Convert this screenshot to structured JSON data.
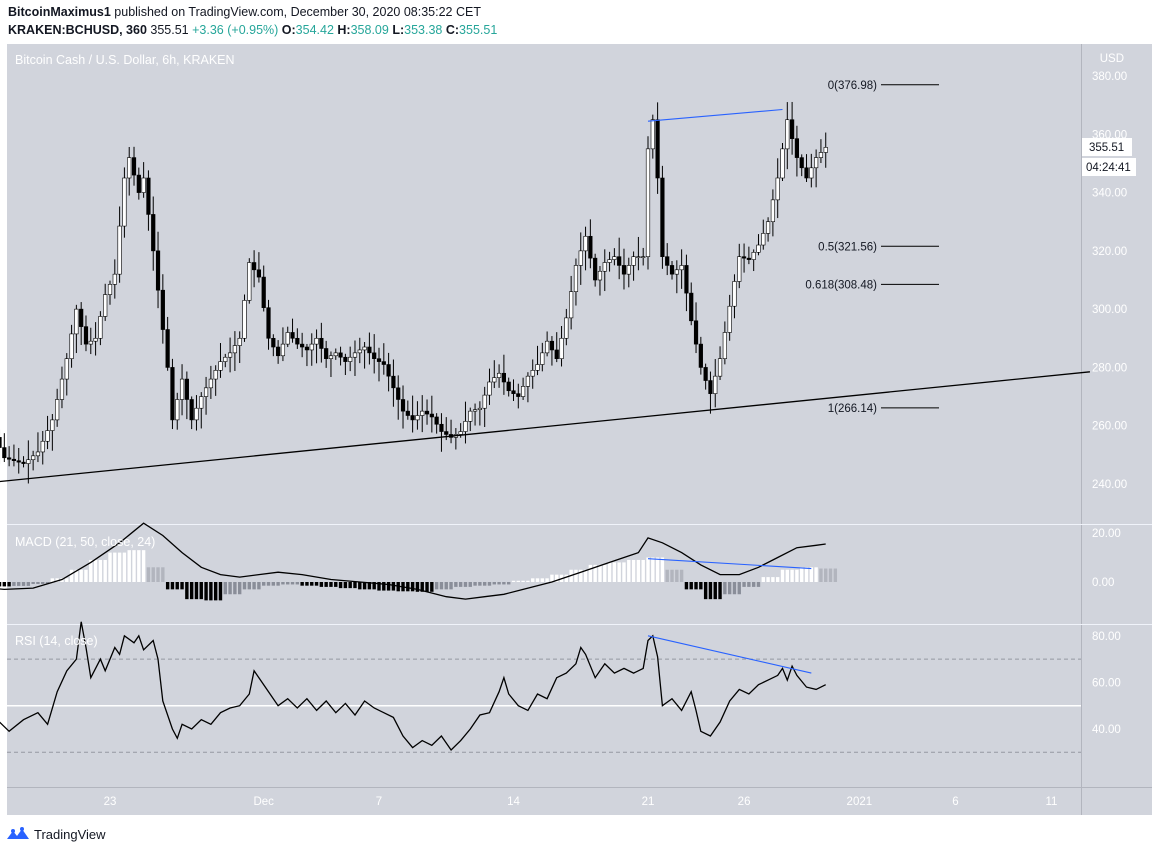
{
  "header": {
    "publisher": "BitcoinMaximus1",
    "published_text": "published on TradingView.com, December 30, 2020 08:35:22 CET",
    "symbol": "KRAKEN:BCHUSD, 360",
    "last": "355.51",
    "change": "+3.36 (+0.95%)",
    "o_label": "O:",
    "o_value": "354.42",
    "h_label": "H:",
    "h_value": "358.09",
    "l_label": "L:",
    "l_value": "353.38",
    "c_label": "C:",
    "c_value": "355.51"
  },
  "chart_title": "Bitcoin Cash / U.S. Dollar, 6h, KRAKEN",
  "currency": "USD",
  "price_axis": {
    "ticks": [
      "380.00",
      "360.00",
      "340.00",
      "320.00",
      "300.00",
      "280.00",
      "260.00",
      "240.00"
    ],
    "current_price_label": "355.51",
    "countdown_label": "04:24:41"
  },
  "macd_label": "MACD (21, 50, close, 24)",
  "macd_axis": [
    "20.00",
    "0.00"
  ],
  "rsi_label": "RSI (14, close)",
  "rsi_axis": [
    "80.00",
    "60.00",
    "40.00"
  ],
  "time_axis": [
    "23",
    "Dec",
    "7",
    "14",
    "21",
    "26",
    "2021",
    "6",
    "11"
  ],
  "fib_labels": [
    "0(376.98)",
    "0.5(321.56)",
    "0.618(308.48)",
    "1(266.14)"
  ],
  "footer": {
    "brand": "TradingView"
  },
  "colors": {
    "pane_background": "#d1d4dc",
    "candle_up": "#ffffff",
    "candle_down": "#000000",
    "divergence_line": "#2962ff",
    "macd_positive": "#ffffff",
    "macd_negative": "#000000",
    "macd_fading": "#8a8e99"
  },
  "chart_data": {
    "type": "candlestick",
    "title": "Bitcoin Cash / U.S. Dollar, 6h, KRAKEN",
    "y_unit": "USD",
    "ylim": [
      228,
      387
    ],
    "price_points": [
      [
        "2020-11-17T00:00",
        256
      ],
      [
        "2020-11-17T12:00",
        249
      ],
      [
        "2020-11-18T12:00",
        247
      ],
      [
        "2020-11-19T06:00",
        251
      ],
      [
        "2020-11-20T00:00",
        262
      ],
      [
        "2020-11-20T18:00",
        283
      ],
      [
        "2020-11-21T06:00",
        300
      ],
      [
        "2020-11-21T18:00",
        288
      ],
      [
        "2020-11-22T06:00",
        290
      ],
      [
        "2020-11-22T18:00",
        305
      ],
      [
        "2020-11-23T06:00",
        312
      ],
      [
        "2020-11-23T18:00",
        345
      ],
      [
        "2020-11-24T00:00",
        352
      ],
      [
        "2020-11-24T12:00",
        340
      ],
      [
        "2020-11-24T18:00",
        345
      ],
      [
        "2020-11-25T06:00",
        320
      ],
      [
        "2020-11-25T18:00",
        293
      ],
      [
        "2020-11-26T00:00",
        280
      ],
      [
        "2020-11-26T06:00",
        262
      ],
      [
        "2020-11-26T18:00",
        276
      ],
      [
        "2020-11-27T06:00",
        262
      ],
      [
        "2020-11-27T18:00",
        270
      ],
      [
        "2020-11-28T06:00",
        276
      ],
      [
        "2020-11-28T18:00",
        282
      ],
      [
        "2020-11-29T06:00",
        285
      ],
      [
        "2020-11-29T18:00",
        290
      ],
      [
        "2020-11-30T06:00",
        316
      ],
      [
        "2020-11-30T18:00",
        311
      ],
      [
        "2020-12-01T06:00",
        290
      ],
      [
        "2020-12-01T18:00",
        284
      ],
      [
        "2020-12-02T06:00",
        292
      ],
      [
        "2020-12-02T18:00",
        288
      ],
      [
        "2020-12-03T06:00",
        286
      ],
      [
        "2020-12-03T18:00",
        290
      ],
      [
        "2020-12-04T06:00",
        283
      ],
      [
        "2020-12-04T18:00",
        285
      ],
      [
        "2020-12-05T06:00",
        282
      ],
      [
        "2020-12-05T18:00",
        285
      ],
      [
        "2020-12-06T06:00",
        287
      ],
      [
        "2020-12-06T18:00",
        283
      ],
      [
        "2020-12-07T06:00",
        281
      ],
      [
        "2020-12-07T18:00",
        273
      ],
      [
        "2020-12-08T06:00",
        265
      ],
      [
        "2020-12-08T18:00",
        262
      ],
      [
        "2020-12-09T06:00",
        265
      ],
      [
        "2020-12-09T18:00",
        263
      ],
      [
        "2020-12-10T06:00",
        258
      ],
      [
        "2020-12-10T18:00",
        256
      ],
      [
        "2020-12-11T06:00",
        258
      ],
      [
        "2020-12-11T18:00",
        265
      ],
      [
        "2020-12-12T06:00",
        266
      ],
      [
        "2020-12-12T18:00",
        275
      ],
      [
        "2020-12-13T06:00",
        278
      ],
      [
        "2020-12-13T18:00",
        272
      ],
      [
        "2020-12-14T06:00",
        270
      ],
      [
        "2020-12-14T18:00",
        277
      ],
      [
        "2020-12-15T06:00",
        281
      ],
      [
        "2020-12-15T18:00",
        289
      ],
      [
        "2020-12-16T06:00",
        283
      ],
      [
        "2020-12-16T18:00",
        297
      ],
      [
        "2020-12-17T06:00",
        315
      ],
      [
        "2020-12-17T18:00",
        325
      ],
      [
        "2020-12-18T06:00",
        310
      ],
      [
        "2020-12-18T18:00",
        316
      ],
      [
        "2020-12-19T06:00",
        318
      ],
      [
        "2020-12-19T18:00",
        312
      ],
      [
        "2020-12-20T06:00",
        318
      ],
      [
        "2020-12-20T18:00",
        318
      ],
      [
        "2020-12-21T00:00",
        355
      ],
      [
        "2020-12-21T06:00",
        365
      ],
      [
        "2020-12-21T12:00",
        345
      ],
      [
        "2020-12-21T18:00",
        318
      ],
      [
        "2020-12-22T06:00",
        312
      ],
      [
        "2020-12-22T18:00",
        315
      ],
      [
        "2020-12-23T06:00",
        296
      ],
      [
        "2020-12-23T18:00",
        280
      ],
      [
        "2020-12-24T06:00",
        271
      ],
      [
        "2020-12-24T18:00",
        283
      ],
      [
        "2020-12-25T06:00",
        301
      ],
      [
        "2020-12-25T18:00",
        318
      ],
      [
        "2020-12-26T06:00",
        317
      ],
      [
        "2020-12-26T18:00",
        322
      ],
      [
        "2020-12-27T06:00",
        330
      ],
      [
        "2020-12-27T18:00",
        345
      ],
      [
        "2020-12-28T06:00",
        365
      ],
      [
        "2020-12-28T18:00",
        352
      ],
      [
        "2020-12-29T06:00",
        345
      ],
      [
        "2020-12-29T18:00",
        352
      ],
      [
        "2020-12-30T06:00",
        355.51
      ]
    ],
    "last_candle": {
      "open": 354.42,
      "high": 358.09,
      "low": 353.38,
      "close": 355.51
    },
    "trendline": {
      "from": [
        "2020-11-16T00:00",
        240.0
      ],
      "to": [
        "2021-01-13T00:00",
        278.5
      ]
    },
    "price_divergence": {
      "from": [
        "2020-12-21T00:00",
        364.5
      ],
      "to": [
        "2020-12-28T00:00",
        368.5
      ]
    },
    "fibonacci": [
      {
        "level": 0,
        "price": 376.98
      },
      {
        "level": 0.5,
        "price": 321.56
      },
      {
        "level": 0.618,
        "price": 308.48
      },
      {
        "level": 1,
        "price": 266.14
      }
    ],
    "macd": {
      "ylim": [
        -10,
        24
      ],
      "points": [
        [
          "2020-11-16T00:00",
          -2
        ],
        [
          "2020-11-17T12:00",
          -3
        ],
        [
          "2020-11-19T00:00",
          -2.5
        ],
        [
          "2020-11-20T12:00",
          1
        ],
        [
          "2020-11-22T00:00",
          8
        ],
        [
          "2020-11-23T12:00",
          16
        ],
        [
          "2020-11-24T18:00",
          24
        ],
        [
          "2020-11-25T18:00",
          19
        ],
        [
          "2020-11-26T18:00",
          12
        ],
        [
          "2020-11-27T18:00",
          6
        ],
        [
          "2020-11-28T18:00",
          3
        ],
        [
          "2020-11-29T18:00",
          2
        ],
        [
          "2020-11-30T18:00",
          3
        ],
        [
          "2020-12-01T18:00",
          4
        ],
        [
          "2020-12-03T00:00",
          3
        ],
        [
          "2020-12-04T12:00",
          1
        ],
        [
          "2020-12-06T00:00",
          0
        ],
        [
          "2020-12-07T12:00",
          -1
        ],
        [
          "2020-12-09T00:00",
          -3
        ],
        [
          "2020-12-10T12:00",
          -6
        ],
        [
          "2020-12-11T12:00",
          -7
        ],
        [
          "2020-12-12T12:00",
          -6
        ],
        [
          "2020-12-13T12:00",
          -5
        ],
        [
          "2020-12-14T12:00",
          -3
        ],
        [
          "2020-12-16T00:00",
          0
        ],
        [
          "2020-12-17T12:00",
          4
        ],
        [
          "2020-12-19T00:00",
          8
        ],
        [
          "2020-12-20T12:00",
          12
        ],
        [
          "2020-12-21T00:00",
          18
        ],
        [
          "2020-12-21T18:00",
          16
        ],
        [
          "2020-12-22T18:00",
          12
        ],
        [
          "2020-12-23T18:00",
          7
        ],
        [
          "2020-12-24T18:00",
          3
        ],
        [
          "2020-12-25T18:00",
          3
        ],
        [
          "2020-12-26T18:00",
          6
        ],
        [
          "2020-12-27T18:00",
          10
        ],
        [
          "2020-12-28T18:00",
          14
        ],
        [
          "2020-12-29T18:00",
          15
        ],
        [
          "2020-12-30T06:00",
          15.5
        ]
      ],
      "histogram": [
        [
          "2020-11-16",
          -1.5
        ],
        [
          "2020-11-17",
          -1.8
        ],
        [
          "2020-11-18",
          -1.6
        ],
        [
          "2020-11-19",
          -0.8
        ],
        [
          "2020-11-20",
          1.5
        ],
        [
          "2020-11-21",
          5
        ],
        [
          "2020-11-22",
          9
        ],
        [
          "2020-11-23",
          12
        ],
        [
          "2020-11-24",
          13
        ],
        [
          "2020-11-25",
          6
        ],
        [
          "2020-11-26",
          -3
        ],
        [
          "2020-11-27",
          -7
        ],
        [
          "2020-11-28",
          -7.5
        ],
        [
          "2020-11-29",
          -5
        ],
        [
          "2020-11-30",
          -3
        ],
        [
          "2020-12-01",
          -1.5
        ],
        [
          "2020-12-02",
          -1
        ],
        [
          "2020-12-03",
          -1.5
        ],
        [
          "2020-12-04",
          -2
        ],
        [
          "2020-12-05",
          -2.5
        ],
        [
          "2020-12-06",
          -3
        ],
        [
          "2020-12-07",
          -3.5
        ],
        [
          "2020-12-08",
          -3.8
        ],
        [
          "2020-12-09",
          -4
        ],
        [
          "2020-12-10",
          -3
        ],
        [
          "2020-12-11",
          -2
        ],
        [
          "2020-12-12",
          -1.5
        ],
        [
          "2020-12-13",
          -1
        ],
        [
          "2020-12-14",
          0.5
        ],
        [
          "2020-12-15",
          1.5
        ],
        [
          "2020-12-16",
          3
        ],
        [
          "2020-12-17",
          5
        ],
        [
          "2020-12-18",
          7
        ],
        [
          "2020-12-19",
          8
        ],
        [
          "2020-12-20",
          9
        ],
        [
          "2020-12-21",
          10
        ],
        [
          "2020-12-22",
          5
        ],
        [
          "2020-12-23",
          -3
        ],
        [
          "2020-12-24",
          -7
        ],
        [
          "2020-12-25",
          -5
        ],
        [
          "2020-12-26",
          -2
        ],
        [
          "2020-12-27",
          2
        ],
        [
          "2020-12-28",
          5
        ],
        [
          "2020-12-29",
          6
        ],
        [
          "2020-12-30",
          5.5
        ]
      ],
      "divergence": {
        "from": [
          "2020-12-21T00:00",
          9.5
        ],
        "to": [
          "2020-12-29T12:00",
          5.5
        ]
      }
    },
    "rsi": {
      "ylim": [
        20,
        88
      ],
      "levels": {
        "upper": 70,
        "middle": 50,
        "lower": 30
      },
      "points": [
        [
          "2020-11-16T00:00",
          51
        ],
        [
          "2020-11-16T12:00",
          40
        ],
        [
          "2020-11-17T06:00",
          43
        ],
        [
          "2020-11-17T18:00",
          39
        ],
        [
          "2020-11-18T12:00",
          44
        ],
        [
          "2020-11-19T06:00",
          47
        ],
        [
          "2020-11-19T18:00",
          42
        ],
        [
          "2020-11-20T06:00",
          56
        ],
        [
          "2020-11-20T18:00",
          65
        ],
        [
          "2020-11-21T06:00",
          70
        ],
        [
          "2020-11-21T12:00",
          86
        ],
        [
          "2020-11-21T18:00",
          75
        ],
        [
          "2020-11-22T00:00",
          62
        ],
        [
          "2020-11-22T12:00",
          70
        ],
        [
          "2020-11-22T18:00",
          65
        ],
        [
          "2020-11-23T06:00",
          75
        ],
        [
          "2020-11-23T12:00",
          72
        ],
        [
          "2020-11-23T18:00",
          80
        ],
        [
          "2020-11-24T06:00",
          77
        ],
        [
          "2020-11-24T12:00",
          80
        ],
        [
          "2020-11-24T18:00",
          74
        ],
        [
          "2020-11-25T06:00",
          78
        ],
        [
          "2020-11-25T12:00",
          70
        ],
        [
          "2020-11-25T18:00",
          52
        ],
        [
          "2020-11-26T06:00",
          40
        ],
        [
          "2020-11-26T12:00",
          36
        ],
        [
          "2020-11-26T18:00",
          42
        ],
        [
          "2020-11-27T06:00",
          40
        ],
        [
          "2020-11-27T18:00",
          44
        ],
        [
          "2020-11-28T06:00",
          42
        ],
        [
          "2020-11-28T18:00",
          47
        ],
        [
          "2020-11-29T06:00",
          49
        ],
        [
          "2020-11-29T18:00",
          50
        ],
        [
          "2020-11-30T06:00",
          55
        ],
        [
          "2020-11-30T12:00",
          65
        ],
        [
          "2020-11-30T18:00",
          62
        ],
        [
          "2020-12-01T06:00",
          56
        ],
        [
          "2020-12-01T18:00",
          50
        ],
        [
          "2020-12-02T06:00",
          53
        ],
        [
          "2020-12-02T18:00",
          49
        ],
        [
          "2020-12-03T06:00",
          53
        ],
        [
          "2020-12-03T18:00",
          48
        ],
        [
          "2020-12-04T06:00",
          52
        ],
        [
          "2020-12-04T18:00",
          47
        ],
        [
          "2020-12-05T06:00",
          51
        ],
        [
          "2020-12-05T18:00",
          46
        ],
        [
          "2020-12-06T06:00",
          52
        ],
        [
          "2020-12-06T18:00",
          49
        ],
        [
          "2020-12-07T06:00",
          47
        ],
        [
          "2020-12-07T18:00",
          45
        ],
        [
          "2020-12-08T06:00",
          37
        ],
        [
          "2020-12-08T18:00",
          32
        ],
        [
          "2020-12-09T06:00",
          35
        ],
        [
          "2020-12-09T18:00",
          33
        ],
        [
          "2020-12-10T06:00",
          37
        ],
        [
          "2020-12-10T18:00",
          31
        ],
        [
          "2020-12-11T06:00",
          35
        ],
        [
          "2020-12-11T18:00",
          40
        ],
        [
          "2020-12-12T06:00",
          46
        ],
        [
          "2020-12-12T18:00",
          47
        ],
        [
          "2020-12-13T06:00",
          56
        ],
        [
          "2020-12-13T12:00",
          62
        ],
        [
          "2020-12-13T18:00",
          55
        ],
        [
          "2020-12-14T06:00",
          50
        ],
        [
          "2020-12-14T18:00",
          48
        ],
        [
          "2020-12-15T06:00",
          55
        ],
        [
          "2020-12-15T18:00",
          53
        ],
        [
          "2020-12-16T06:00",
          62
        ],
        [
          "2020-12-16T18:00",
          64
        ],
        [
          "2020-12-17T06:00",
          68
        ],
        [
          "2020-12-17T12:00",
          75
        ],
        [
          "2020-12-17T18:00",
          72
        ],
        [
          "2020-12-18T06:00",
          62
        ],
        [
          "2020-12-18T18:00",
          68
        ],
        [
          "2020-12-19T06:00",
          64
        ],
        [
          "2020-12-19T18:00",
          66
        ],
        [
          "2020-12-20T06:00",
          64
        ],
        [
          "2020-12-20T18:00",
          66
        ],
        [
          "2020-12-21T00:00",
          78
        ],
        [
          "2020-12-21T06:00",
          80
        ],
        [
          "2020-12-21T12:00",
          71
        ],
        [
          "2020-12-21T18:00",
          50
        ],
        [
          "2020-12-22T06:00",
          53
        ],
        [
          "2020-12-22T18:00",
          48
        ],
        [
          "2020-12-23T06:00",
          56
        ],
        [
          "2020-12-23T12:00",
          48
        ],
        [
          "2020-12-23T18:00",
          39
        ],
        [
          "2020-12-24T06:00",
          37
        ],
        [
          "2020-12-24T18:00",
          43
        ],
        [
          "2020-12-25T06:00",
          52
        ],
        [
          "2020-12-25T18:00",
          57
        ],
        [
          "2020-12-26T06:00",
          55
        ],
        [
          "2020-12-26T18:00",
          59
        ],
        [
          "2020-12-27T06:00",
          61
        ],
        [
          "2020-12-27T18:00",
          63
        ],
        [
          "2020-12-28T00:00",
          66
        ],
        [
          "2020-12-28T06:00",
          61
        ],
        [
          "2020-12-28T12:00",
          67
        ],
        [
          "2020-12-28T18:00",
          63
        ],
        [
          "2020-12-29T06:00",
          58
        ],
        [
          "2020-12-29T18:00",
          57
        ],
        [
          "2020-12-30T06:00",
          59
        ]
      ],
      "divergence": {
        "from": [
          "2020-12-21T00:00",
          80
        ],
        "to": [
          "2020-12-29T12:00",
          64
        ]
      }
    }
  }
}
